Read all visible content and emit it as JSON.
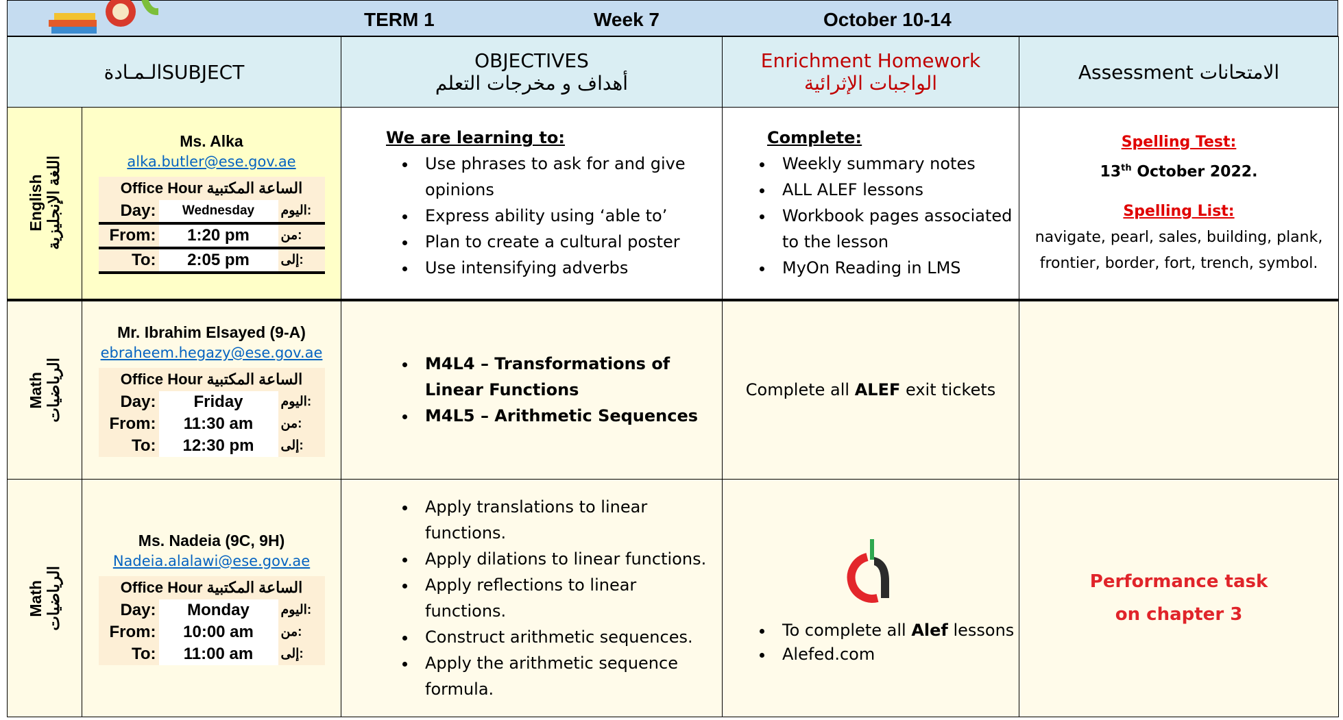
{
  "header": {
    "term": "TERM  1",
    "week": "Week 7",
    "dates": "October 10-14"
  },
  "columns": {
    "subject": "الـمـادةSUBJECT",
    "objectives_en": "OBJECTIVES",
    "objectives_ar": "أهداف و مخرجات التعلم",
    "homework_en": "Enrichment Homework",
    "homework_ar": "الواجبات الإثرائية",
    "assessment": "Assessment الامتحانات"
  },
  "labels": {
    "office_en": "Office Hour",
    "office_ar": "الساعة المكتبية",
    "day": "Day:",
    "from": "From:",
    "to": "To:",
    "day_ar": "اليوم:",
    "from_ar": "من:",
    "to_ar": "إلى:"
  },
  "rows": [
    {
      "subject_en": "English",
      "subject_ar": "اللغة الإنجليزية",
      "teacher": "Ms. Alka",
      "email": "alka.butler@ese.gov.ae",
      "day": "Wednesday",
      "from": "1:20 pm",
      "to": "2:05 pm",
      "objectives_heading": "We are learning to:",
      "objectives": [
        "Use phrases to ask for and give opinions",
        "Express ability using ‘able to’",
        "Plan to create a cultural poster",
        "Use intensifying adverbs"
      ],
      "homework_heading": "Complete:",
      "homework": [
        "Weekly summary notes",
        "ALL ALEF lessons",
        "Workbook pages associated to the lesson",
        "MyOn Reading in LMS"
      ],
      "assessment": {
        "test_label": "Spelling Test:",
        "date_day": "13",
        "date_suffix": "th",
        "date_rest": " October 2022.",
        "list_label": "Spelling List:",
        "list": "navigate, pearl, sales, building, plank, frontier, border, fort, trench, symbol."
      }
    },
    {
      "subject_en": "Math",
      "subject_ar": "الرياضيات",
      "teacher": "Mr. Ibrahim Elsayed (9-A)",
      "email": "ebraheem.hegazy@ese.gov.ae",
      "day": "Friday",
      "from": "11:30 am",
      "to": "12:30 pm",
      "objectives": [
        "M4L4 – Transformations of Linear Functions",
        "M4L5 – Arithmetic Sequences"
      ],
      "homework": [
        "Complete all ",
        "ALEF",
        " exit tickets"
      ]
    },
    {
      "subject_en": "Math",
      "subject_ar": "الرياضيات",
      "teacher": "Ms. Nadeia (9C, 9H)",
      "email": "Nadeia.alalawi@ese.gov.ae",
      "day": "Monday",
      "from": "10:00 am",
      "to": "11:00 am",
      "objectives": [
        "Apply translations to linear functions.",
        "Apply dilations to linear functions.",
        "Apply reflections to linear functions.",
        "Construct arithmetic sequences.",
        "Apply the arithmetic sequence formula."
      ],
      "homework": [
        [
          "To complete all ",
          "Alef",
          " lessons"
        ],
        [
          "Alefed.com"
        ]
      ],
      "assessment": [
        "Performance task",
        "on chapter 3"
      ]
    }
  ]
}
